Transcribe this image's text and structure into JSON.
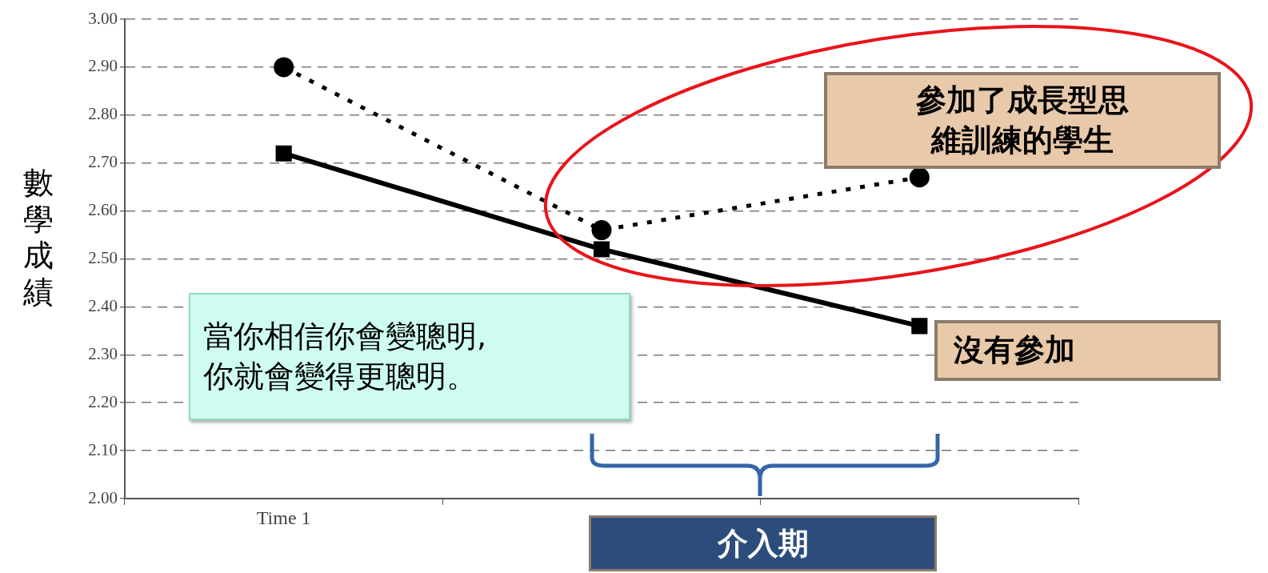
{
  "chart_data": {
    "type": "line",
    "ylabel": "數學成績",
    "categories": [
      "Time 1",
      null,
      null
    ],
    "series": [
      {
        "name": "參加了成長型思維訓練的學生",
        "color": "#000000",
        "values": [
          2.9,
          2.56,
          2.67
        ],
        "marker": "circle",
        "line_style": "dotted"
      },
      {
        "name": "沒有參加",
        "color": "#000000",
        "values": [
          2.72,
          2.52,
          2.36
        ],
        "marker": "square",
        "line_style": "solid"
      }
    ],
    "ylim": [
      2.0,
      3.0
    ],
    "yticks": [
      {
        "value": 2.0,
        "label": "2.00"
      },
      {
        "value": 2.1,
        "label": "2.10"
      },
      {
        "value": 2.2,
        "label": "2.20"
      },
      {
        "value": 2.3,
        "label": "2.30"
      },
      {
        "value": 2.4,
        "label": "2.40"
      },
      {
        "value": 2.5,
        "label": "2.50"
      },
      {
        "value": 2.6,
        "label": "2.60"
      },
      {
        "value": 2.7,
        "label": "2.70"
      },
      {
        "value": 2.8,
        "label": "2.80"
      },
      {
        "value": 2.9,
        "label": "2.90"
      },
      {
        "value": 3.0,
        "label": "3.00"
      }
    ],
    "grid": "y",
    "legend": false,
    "annotations": [
      "當你相信你會變聰明,\n你就會變得更聰明。",
      "介入期"
    ]
  }
}
